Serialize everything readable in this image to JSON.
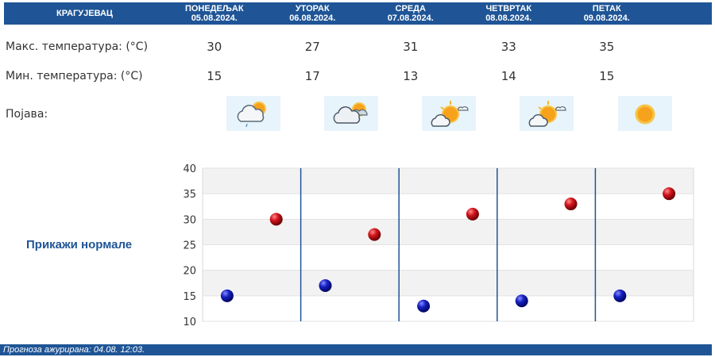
{
  "header": {
    "city": "КРАГУЈЕВАЦ",
    "days": [
      {
        "name": "ПОНЕДЕЉАК",
        "date": "05.08.2024."
      },
      {
        "name": "УТОРАК",
        "date": "06.08.2024."
      },
      {
        "name": "СРЕДА",
        "date": "07.08.2024."
      },
      {
        "name": "ЧЕТВРТАК",
        "date": "08.08.2024."
      },
      {
        "name": "ПЕТАК",
        "date": "09.08.2024."
      }
    ]
  },
  "rows": {
    "max_label": "Макс. температура: (°C)",
    "min_label": "Мин. температура: (°C)",
    "phenomenon_label": "Појава:"
  },
  "max_temps": [
    "30",
    "27",
    "31",
    "33",
    "35"
  ],
  "min_temps": [
    "15",
    "17",
    "13",
    "14",
    "15"
  ],
  "icons": [
    "partly-cloudy-light-rain-icon",
    "cloudy-sun-icon",
    "sun-with-clouds-icon",
    "sun-with-clouds-icon",
    "sun-icon"
  ],
  "normals_link": "Прикажи нормале",
  "footer": "Прогноза ажурирана:  04.08. 12:03.",
  "colors": {
    "header_bg": "#1f5596",
    "max_point": "#c0141b",
    "min_point": "#1420b0",
    "icon_bg": "#e8f4fb"
  },
  "chart_data": {
    "type": "scatter",
    "categories": [
      "05.08.2024.",
      "06.08.2024.",
      "07.08.2024.",
      "08.08.2024.",
      "09.08.2024."
    ],
    "series": [
      {
        "values": [
          30,
          27,
          31,
          33,
          35
        ],
        "color": "#c0141b"
      },
      {
        "values": [
          15,
          17,
          13,
          14,
          15
        ],
        "color": "#1420b0"
      }
    ],
    "yticks": [
      10,
      15,
      20,
      25,
      30,
      35,
      40
    ],
    "ylim": [
      10,
      40
    ],
    "grid": true
  }
}
